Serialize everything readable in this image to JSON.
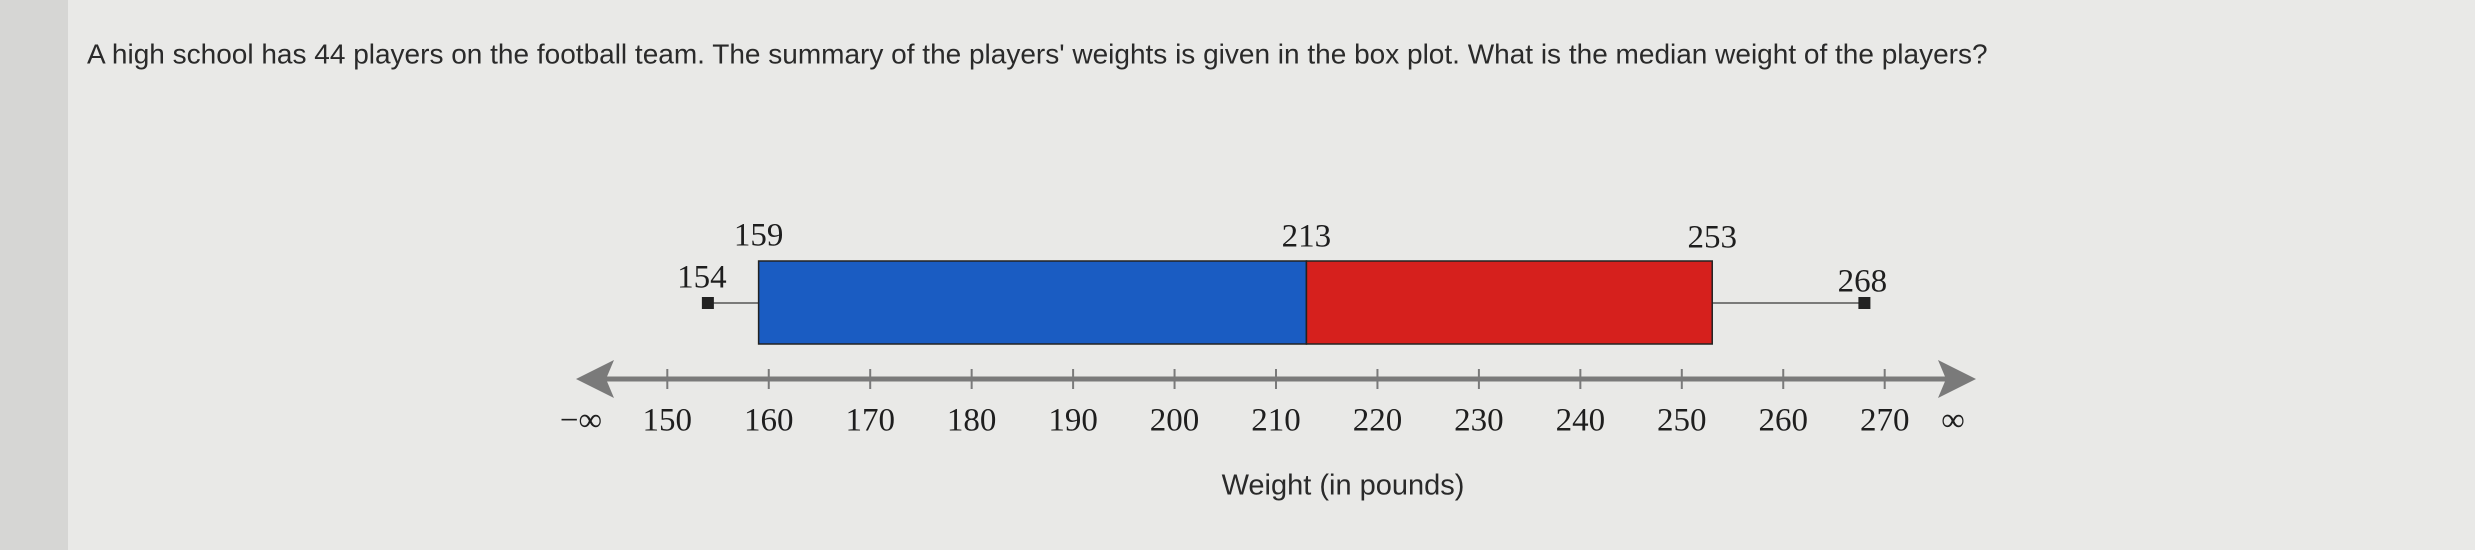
{
  "question": "A high school has 44 players on the football team.  The summary of the players' weights is given in the box plot.  What is the median weight of the players?",
  "chart_data": {
    "type": "box",
    "x_label": "Weight (in pounds)",
    "min": 154,
    "q1": 159,
    "median": 213,
    "q3": 253,
    "max": 268,
    "lower_color": "#1a5cc2",
    "upper_color": "#d6201d",
    "xlim": [
      141,
      279
    ],
    "xticks": [
      150,
      160,
      170,
      180,
      190,
      200,
      210,
      220,
      230,
      240,
      250,
      260,
      270
    ],
    "axis_end_labels": [
      "−∞",
      "∞"
    ]
  }
}
